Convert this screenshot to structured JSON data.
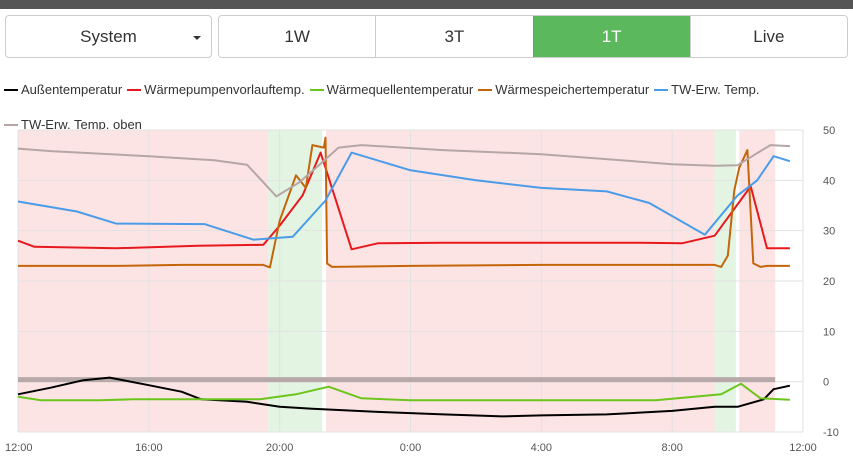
{
  "controls": {
    "system_select": {
      "value": "System"
    },
    "ranges": [
      {
        "label": "1W",
        "active": false
      },
      {
        "label": "3T",
        "active": false
      },
      {
        "label": "1T",
        "active": true
      },
      {
        "label": "Live",
        "active": false
      }
    ]
  },
  "colors": {
    "active_button": "#5cb85c",
    "band_off": "#fde4e4",
    "band_on": "#e3f5e2",
    "flag_band": "#b7a9a9"
  },
  "chart_data": {
    "type": "line",
    "title": "",
    "xlabel": "",
    "ylabel": "",
    "x_ticks": [
      "12:00",
      "16:00",
      "20:00",
      "0:00",
      "4:00",
      "8:00",
      "12:00"
    ],
    "y_ticks": [
      -10,
      0,
      10,
      20,
      30,
      40,
      50
    ],
    "xlim": [
      0,
      24
    ],
    "ylim": [
      -10,
      50
    ],
    "grid": true,
    "legend_position": "top-left",
    "background_bands": [
      {
        "from": 0,
        "to": 7.65,
        "state": "off"
      },
      {
        "from": 7.65,
        "to": 9.3,
        "state": "on"
      },
      {
        "from": 9.42,
        "to": 21.3,
        "state": "off"
      },
      {
        "from": 21.3,
        "to": 21.95,
        "state": "on"
      },
      {
        "from": 22.05,
        "to": 23.15,
        "state": "off"
      }
    ],
    "flag_band": {
      "y_from": -0.1,
      "y_to": 0.9,
      "from": 0,
      "to": 23.15
    },
    "series": [
      {
        "name": "Außentemperatur",
        "color": "#000000",
        "points": [
          [
            0,
            -2.5
          ],
          [
            1,
            -1.2
          ],
          [
            2,
            0.3
          ],
          [
            2.8,
            0.8
          ],
          [
            4,
            -0.7
          ],
          [
            5,
            -2
          ],
          [
            5.6,
            -3.5
          ],
          [
            7,
            -4
          ],
          [
            8,
            -5
          ],
          [
            9,
            -5.4
          ],
          [
            11,
            -6
          ],
          [
            13,
            -6.5
          ],
          [
            14.8,
            -6.9
          ],
          [
            16,
            -6.7
          ],
          [
            18,
            -6.5
          ],
          [
            20,
            -5.8
          ],
          [
            21.3,
            -5
          ],
          [
            22,
            -5
          ],
          [
            22.8,
            -3.5
          ],
          [
            23.1,
            -1.5
          ],
          [
            23.6,
            -0.8
          ]
        ]
      },
      {
        "name": "Wärmepumpenvorlauftemp.",
        "color": "#e8191e",
        "points": [
          [
            0,
            28
          ],
          [
            0.5,
            26.8
          ],
          [
            3,
            26.5
          ],
          [
            5.5,
            27
          ],
          [
            7.5,
            27.2
          ],
          [
            8,
            31
          ],
          [
            8.7,
            37
          ],
          [
            9.25,
            45.5
          ],
          [
            10.2,
            26.3
          ],
          [
            11,
            27.5
          ],
          [
            13,
            27.6
          ],
          [
            19,
            27.6
          ],
          [
            20.3,
            27.5
          ],
          [
            21.3,
            29
          ],
          [
            22.4,
            38.8
          ],
          [
            22.9,
            26.5
          ],
          [
            23.6,
            26.5
          ]
        ]
      },
      {
        "name": "Wärmequellentemperatur",
        "color": "#6cc51c",
        "points": [
          [
            0,
            -3
          ],
          [
            0.7,
            -3.7
          ],
          [
            2.5,
            -3.7
          ],
          [
            3.5,
            -3.5
          ],
          [
            7.4,
            -3.5
          ],
          [
            8.5,
            -2.5
          ],
          [
            9.5,
            -1
          ],
          [
            10.5,
            -3.3
          ],
          [
            12,
            -3.7
          ],
          [
            19.5,
            -3.7
          ],
          [
            21.5,
            -2.5
          ],
          [
            22.1,
            -0.4
          ],
          [
            22.7,
            -3.3
          ],
          [
            23.6,
            -3.6
          ]
        ]
      },
      {
        "name": "Wärmespeichertemperatur",
        "color": "#c4650a",
        "points": [
          [
            0,
            23
          ],
          [
            3,
            23
          ],
          [
            5,
            23.2
          ],
          [
            7.5,
            23.2
          ],
          [
            7.7,
            22.7
          ],
          [
            8,
            32
          ],
          [
            8.5,
            41
          ],
          [
            8.8,
            38.5
          ],
          [
            9.0,
            47
          ],
          [
            9.35,
            46.5
          ],
          [
            9.4,
            48.5
          ],
          [
            9.45,
            23.5
          ],
          [
            9.6,
            22.8
          ],
          [
            12,
            23
          ],
          [
            16,
            23.2
          ],
          [
            21.3,
            23.2
          ],
          [
            21.5,
            22.8
          ],
          [
            21.7,
            25
          ],
          [
            21.9,
            38
          ],
          [
            22.05,
            42.5
          ],
          [
            22.3,
            46
          ],
          [
            22.48,
            23.5
          ],
          [
            22.7,
            22.8
          ],
          [
            22.9,
            23
          ],
          [
            23.6,
            23
          ]
        ]
      },
      {
        "name": "TW-Erw. Temp.",
        "color": "#4a9ce8",
        "points": [
          [
            0,
            35.8
          ],
          [
            1.8,
            33.8
          ],
          [
            3,
            31.4
          ],
          [
            5.7,
            31.3
          ],
          [
            7.2,
            28.2
          ],
          [
            8.4,
            28.8
          ],
          [
            9.4,
            36
          ],
          [
            10.2,
            45.5
          ],
          [
            12,
            42
          ],
          [
            14,
            40
          ],
          [
            16,
            38.5
          ],
          [
            18,
            37.8
          ],
          [
            19.3,
            35.5
          ],
          [
            21,
            29.2
          ],
          [
            22,
            37
          ],
          [
            22.6,
            40
          ],
          [
            23.1,
            44.8
          ],
          [
            23.6,
            43.8
          ]
        ]
      },
      {
        "name": "TW-Erw. Temp. oben",
        "color": "#b5a6a6",
        "points": [
          [
            0,
            46.3
          ],
          [
            1,
            45.8
          ],
          [
            4,
            44.8
          ],
          [
            6,
            44
          ],
          [
            7,
            43.1
          ],
          [
            7.9,
            36.8
          ],
          [
            8.6,
            39.6
          ],
          [
            9.2,
            43
          ],
          [
            9.8,
            46.5
          ],
          [
            10.5,
            47
          ],
          [
            13,
            46
          ],
          [
            16,
            45.2
          ],
          [
            20,
            43.2
          ],
          [
            21.3,
            42.9
          ],
          [
            22,
            43
          ],
          [
            23,
            47
          ],
          [
            23.6,
            46.8
          ]
        ]
      }
    ]
  }
}
